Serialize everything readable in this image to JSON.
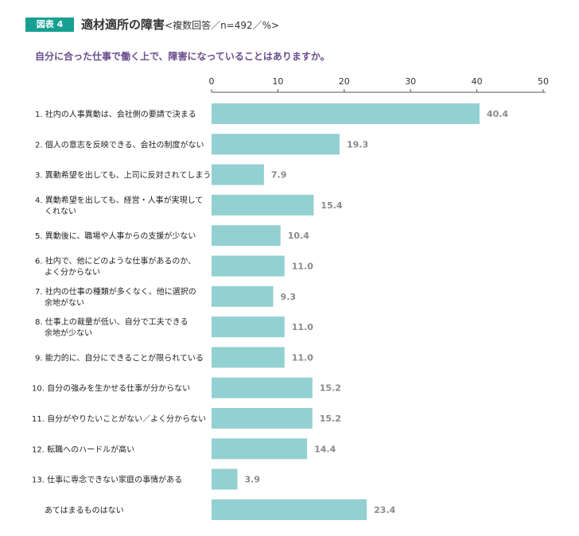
{
  "header": {
    "badge": "図表 4",
    "title": "適材適所の障害",
    "subtitle": "<複数回答／n=492／%>",
    "question": "自分に合った仕事で働く上で、障害になっていることはありますか。"
  },
  "colors": {
    "bar": "#93d0d1",
    "badge": "#17a092",
    "question": "#6b4d8c"
  },
  "chart_data": {
    "type": "bar",
    "orientation": "horizontal",
    "xlim": [
      0,
      50
    ],
    "ticks": [
      0,
      10,
      20,
      30,
      40,
      50
    ],
    "grid": false,
    "categories": [
      [
        "1. 社内の人事異動は、会社側の要請で決まる"
      ],
      [
        "2. 個人の意志を反映できる、会社の制度がない"
      ],
      [
        "3. 異動希望を出しても、上司に反対されてしまう"
      ],
      [
        "4. 異動希望を出しても、経営・人事が実現して",
        "くれない"
      ],
      [
        "5. 異動後に、職場や人事からの支援が少ない"
      ],
      [
        "6. 社内で、他にどのような仕事があるのか、",
        "よく分からない"
      ],
      [
        "7. 社内の仕事の種類が多くなく、他に選択の",
        "余地がない"
      ],
      [
        "8. 仕事上の裁量が低い、自分で工夫できる",
        "余地が少ない"
      ],
      [
        "9. 能力的に、自分にできることが限られている"
      ],
      [
        "10. 自分の強みを生かせる仕事が分からない"
      ],
      [
        "11. 自分がやりたいことがない／よく分からない"
      ],
      [
        "12. 転職へのハードルが高い"
      ],
      [
        "13. 仕事に専念できない家庭の事情がある"
      ],
      [
        "あてはまるものはない"
      ]
    ],
    "values": [
      40.4,
      19.3,
      7.9,
      15.4,
      10.4,
      11.0,
      9.3,
      11.0,
      11.0,
      15.2,
      15.2,
      14.4,
      3.9,
      23.4
    ],
    "value_labels": [
      "40.4",
      "19.3",
      "7.9",
      "15.4",
      "10.4",
      "11.0",
      "9.3",
      "11.0",
      "11.0",
      "15.2",
      "15.2",
      "14.4",
      "3.9",
      "23.4"
    ]
  }
}
